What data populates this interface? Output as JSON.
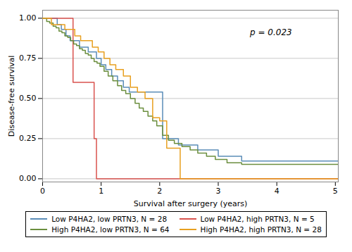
{
  "chart_data": {
    "type": "step",
    "xlabel": "Survival after surgery (years)",
    "ylabel": "Disease-free survival",
    "xlim": [
      0,
      5.05
    ],
    "ylim": [
      -0.02,
      1.05
    ],
    "xticks": [
      0,
      1,
      2,
      3,
      4,
      5
    ],
    "yticks": [
      {
        "value": 0,
        "label": "0.00"
      },
      0.25,
      {
        "value": 0.5,
        "label": "0.50"
      },
      0.75,
      {
        "value": 1,
        "label": "1.00"
      }
    ],
    "grid": true,
    "legend": "bottom",
    "annotations": [
      {
        "text": "p = 0.023",
        "x": 3.9,
        "y": 0.91
      }
    ],
    "series": [
      {
        "name": "Low P4HA2, low PRTN3, N = 28",
        "color": "#5b8db8",
        "x": [
          0.0,
          0.18,
          0.25,
          0.32,
          0.4,
          0.47,
          0.55,
          0.63,
          0.7,
          0.78,
          0.85,
          0.92,
          1.0,
          1.08,
          1.18,
          1.28,
          1.38,
          1.48,
          1.58,
          1.68,
          1.78,
          1.88,
          1.97,
          2.05,
          2.18,
          2.32,
          2.5,
          2.65,
          2.8,
          3.0,
          3.2,
          3.4,
          3.65,
          3.9,
          4.2,
          4.6,
          5.05
        ],
        "values": [
          1.0,
          1.0,
          0.96,
          0.93,
          0.89,
          0.86,
          0.86,
          0.82,
          0.82,
          0.79,
          0.79,
          0.75,
          0.71,
          0.68,
          0.64,
          0.61,
          0.57,
          0.54,
          0.54,
          0.54,
          0.54,
          0.54,
          0.54,
          0.25,
          0.25,
          0.21,
          0.21,
          0.18,
          0.18,
          0.14,
          0.14,
          0.11,
          0.11,
          0.11,
          0.11,
          0.11,
          0.11
        ]
      },
      {
        "name": "Low P4HA2, high PRTN3, N = 5",
        "color": "#d9534f",
        "x": [
          0.0,
          0.1,
          0.52,
          0.62,
          0.88,
          0.92,
          5.05
        ],
        "values": [
          1.0,
          1.0,
          0.6,
          0.6,
          0.25,
          0.0,
          0.0
        ]
      },
      {
        "name": "High P4HA2, low PRTN3, N = 64",
        "color": "#6b8e3e",
        "x": [
          0.0,
          0.07,
          0.12,
          0.18,
          0.23,
          0.28,
          0.33,
          0.38,
          0.43,
          0.48,
          0.53,
          0.58,
          0.63,
          0.68,
          0.73,
          0.78,
          0.83,
          0.88,
          0.93,
          0.98,
          1.05,
          1.12,
          1.2,
          1.28,
          1.35,
          1.42,
          1.5,
          1.58,
          1.65,
          1.72,
          1.8,
          1.88,
          1.95,
          2.05,
          2.15,
          2.25,
          2.38,
          2.52,
          2.65,
          2.8,
          2.95,
          3.15,
          3.4,
          3.7,
          4.1,
          4.6,
          5.05
        ],
        "values": [
          1.0,
          0.98,
          0.97,
          0.95,
          0.94,
          0.92,
          0.91,
          0.89,
          0.88,
          0.86,
          0.84,
          0.83,
          0.81,
          0.8,
          0.78,
          0.77,
          0.75,
          0.73,
          0.72,
          0.7,
          0.67,
          0.64,
          0.61,
          0.58,
          0.55,
          0.53,
          0.5,
          0.47,
          0.44,
          0.42,
          0.39,
          0.36,
          0.33,
          0.27,
          0.24,
          0.22,
          0.2,
          0.18,
          0.16,
          0.14,
          0.12,
          0.1,
          0.09,
          0.09,
          0.09,
          0.09,
          0.09
        ]
      },
      {
        "name": "High P4HA2, high PRTN3, N = 28",
        "color": "#e8a020",
        "x": [
          0.0,
          0.08,
          0.15,
          0.22,
          0.3,
          0.38,
          0.45,
          0.55,
          0.65,
          0.75,
          0.85,
          0.95,
          1.05,
          1.15,
          1.25,
          1.38,
          1.5,
          1.62,
          1.75,
          1.88,
          2.0,
          2.12,
          2.22,
          2.35,
          5.05
        ],
        "values": [
          1.0,
          1.0,
          0.96,
          0.96,
          0.96,
          0.93,
          0.93,
          0.89,
          0.86,
          0.86,
          0.82,
          0.79,
          0.75,
          0.71,
          0.68,
          0.64,
          0.57,
          0.54,
          0.5,
          0.38,
          0.36,
          0.19,
          0.19,
          0.0,
          0.0
        ]
      }
    ]
  }
}
